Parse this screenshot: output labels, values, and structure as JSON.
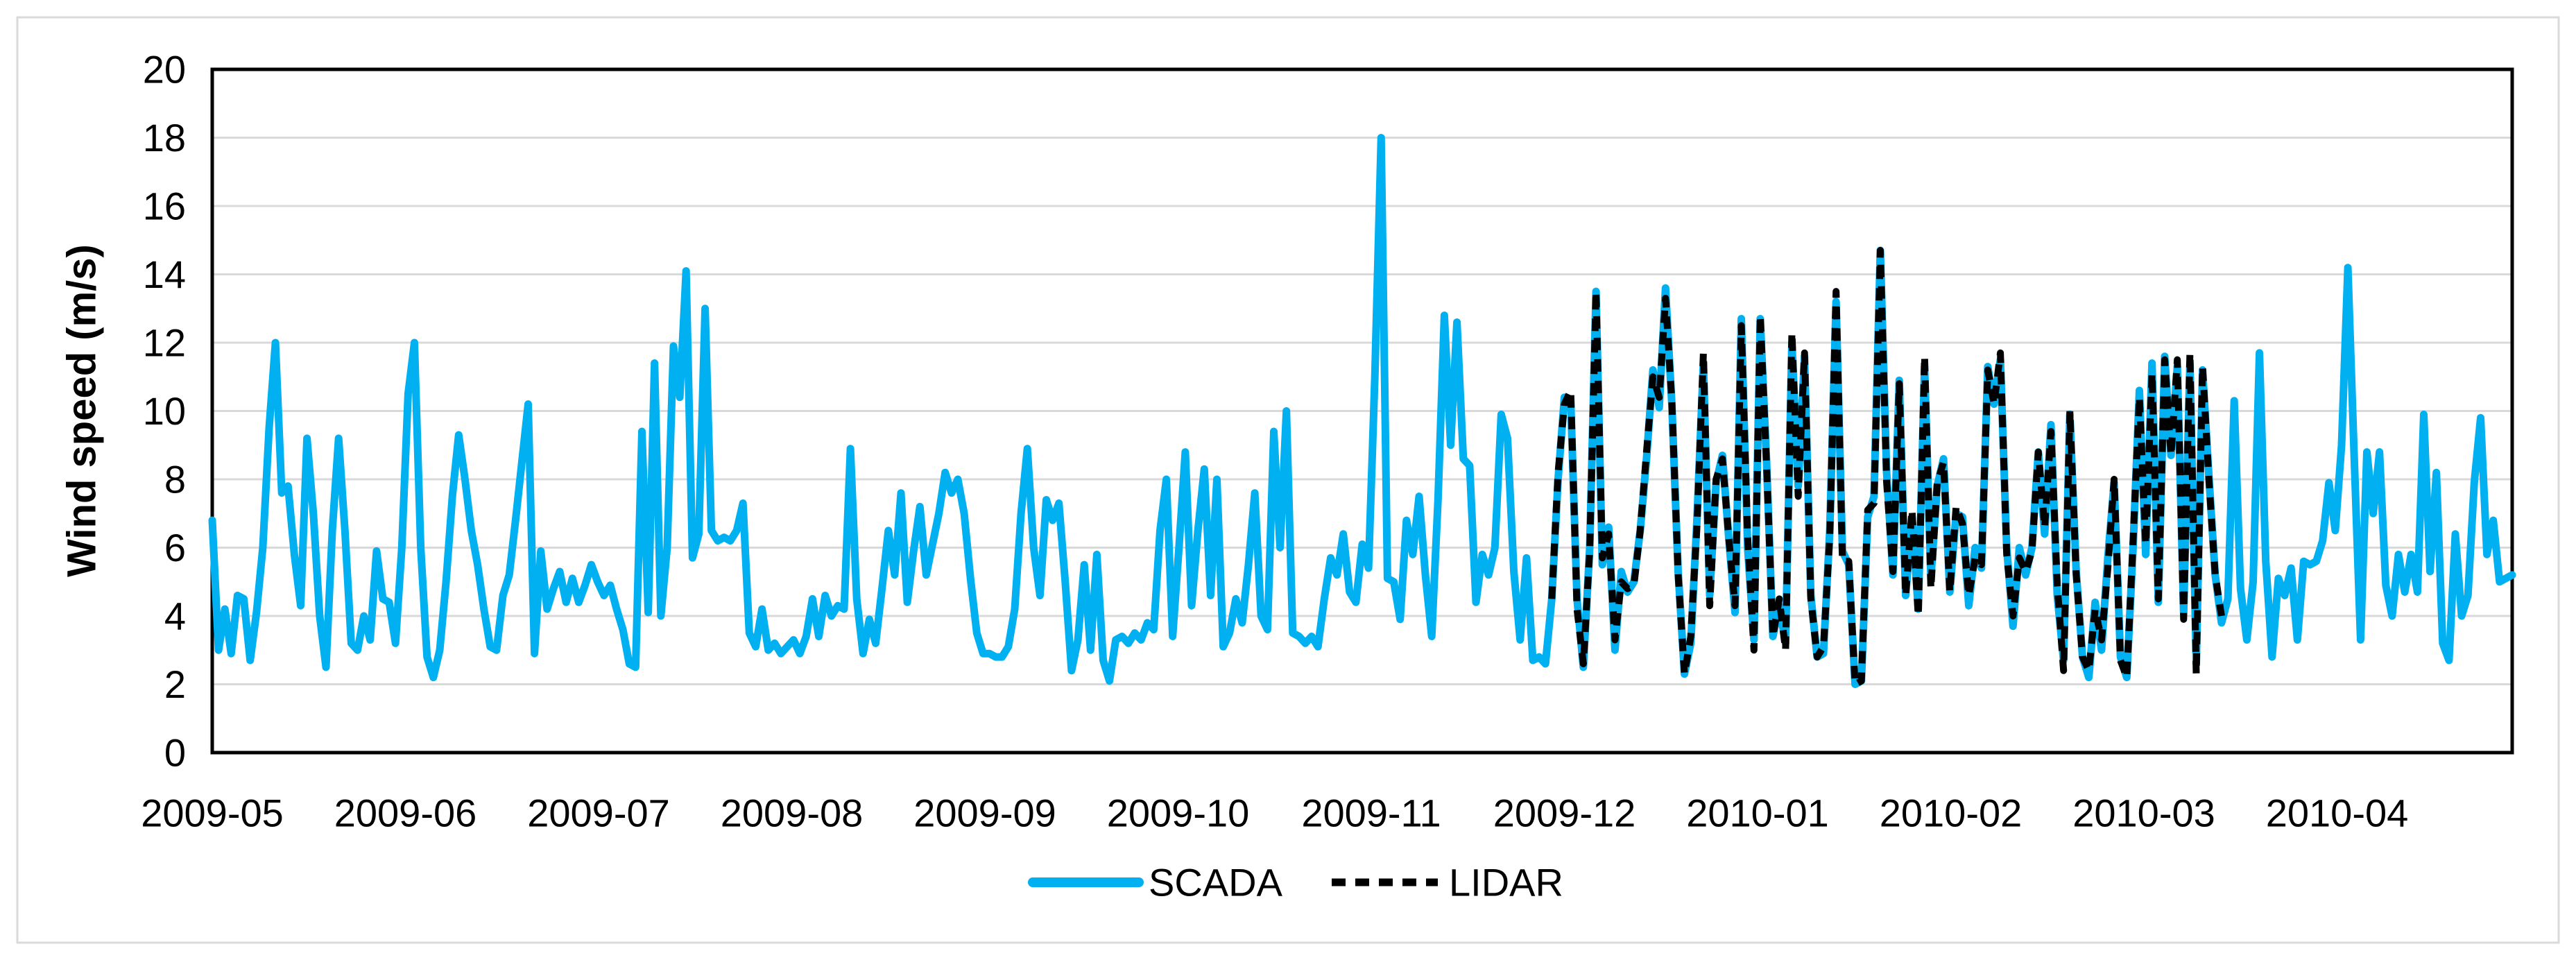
{
  "chart_data": {
    "type": "line",
    "title": "",
    "xlabel": "",
    "ylabel": "Wind speed (m/s)",
    "ylim": [
      0,
      20
    ],
    "y_tick_step": 2,
    "y_tick_labels": [
      "0",
      "2",
      "4",
      "6",
      "8",
      "10",
      "12",
      "14",
      "16",
      "18",
      "20"
    ],
    "grid": "horizontal-gridlines-on",
    "gridline_color": "#D9D9D9",
    "axis_color": "#000000",
    "outer_border_color": "#D9D9D9",
    "legend_position": "bottom-center",
    "x_unit": "day",
    "x_range_start": "2009-05-01",
    "x_range_end": "2010-04-30",
    "x_tick_labels": [
      "2009-05",
      "2009-06",
      "2009-07",
      "2009-08",
      "2009-09",
      "2009-10",
      "2009-11",
      "2009-12",
      "2010-01",
      "2010-02",
      "2010-03",
      "2010-04"
    ],
    "series": [
      {
        "name": "SCADA",
        "color": "#00B0F0",
        "style": "solid",
        "coverage": "2009-05-01 to 2010-04-30",
        "start_index": 0,
        "values": [
          6.8,
          3.0,
          4.2,
          2.9,
          4.6,
          4.5,
          2.7,
          4.1,
          6.0,
          9.5,
          12.0,
          7.6,
          7.8,
          5.8,
          4.3,
          9.2,
          7.0,
          4.0,
          2.5,
          6.5,
          9.2,
          6.5,
          3.2,
          3.0,
          4.0,
          3.3,
          5.9,
          4.5,
          4.4,
          3.2,
          6.0,
          10.5,
          12.0,
          6.0,
          2.8,
          2.2,
          3.0,
          5.0,
          7.5,
          9.3,
          8.0,
          6.5,
          5.5,
          4.2,
          3.1,
          3.0,
          4.6,
          5.2,
          6.8,
          8.5,
          10.2,
          2.9,
          5.9,
          4.2,
          4.8,
          5.3,
          4.4,
          5.1,
          4.4,
          4.9,
          5.5,
          5.0,
          4.6,
          4.9,
          4.2,
          3.6,
          2.6,
          2.5,
          9.4,
          4.1,
          11.4,
          4.0,
          6.0,
          11.9,
          10.4,
          14.1,
          5.7,
          6.4,
          13.0,
          6.5,
          6.2,
          6.3,
          6.2,
          6.5,
          7.3,
          3.5,
          3.1,
          4.2,
          3.0,
          3.2,
          2.9,
          3.1,
          3.3,
          2.9,
          3.4,
          4.5,
          3.4,
          4.6,
          4.0,
          4.3,
          4.2,
          8.9,
          4.5,
          2.9,
          3.9,
          3.2,
          4.8,
          6.5,
          5.2,
          7.6,
          4.4,
          5.9,
          7.2,
          5.2,
          6.1,
          7.0,
          8.2,
          7.6,
          8.0,
          7.0,
          5.1,
          3.5,
          2.9,
          2.9,
          2.8,
          2.8,
          3.1,
          4.2,
          7.0,
          8.9,
          6.0,
          4.6,
          7.4,
          6.8,
          7.3,
          5.0,
          2.4,
          3.3,
          5.5,
          3.0,
          5.8,
          2.7,
          2.1,
          3.3,
          3.4,
          3.2,
          3.5,
          3.3,
          3.8,
          3.6,
          6.5,
          8.0,
          3.4,
          6.0,
          8.8,
          4.3,
          6.5,
          8.3,
          4.6,
          8.0,
          3.1,
          3.5,
          4.5,
          3.8,
          5.5,
          7.6,
          4.0,
          3.6,
          9.4,
          6.0,
          10.0,
          3.5,
          3.4,
          3.2,
          3.4,
          3.1,
          4.5,
          5.7,
          5.2,
          6.4,
          4.7,
          4.4,
          6.1,
          5.4,
          11.0,
          18.0,
          5.1,
          5.0,
          3.9,
          6.8,
          5.8,
          7.5,
          5.2,
          3.4,
          7.4,
          12.8,
          9.0,
          12.6,
          8.6,
          8.4,
          4.4,
          5.8,
          5.2,
          6.0,
          9.9,
          9.2,
          5.3,
          3.3,
          5.7,
          2.7,
          2.8,
          2.6,
          4.5,
          8.0,
          10.4,
          10.3,
          4.5,
          2.5,
          6.0,
          13.5,
          5.5,
          6.6,
          3.0,
          5.3,
          4.7,
          5.0,
          6.5,
          8.6,
          11.2,
          10.1,
          13.6,
          10.2,
          5.3,
          2.3,
          3.2,
          6.9,
          11.4,
          4.6,
          7.9,
          8.7,
          6.3,
          4.1,
          12.7,
          6.0,
          3.3,
          12.7,
          8.5,
          3.4,
          4.3,
          3.2,
          12.0,
          7.8,
          11.6,
          4.6,
          2.8,
          2.9,
          6.5,
          13.2,
          5.9,
          5.5,
          2.0,
          2.1,
          6.9,
          7.5,
          14.7,
          8.2,
          5.2,
          10.9,
          4.6,
          6.9,
          4.2,
          11.3,
          5.1,
          7.8,
          8.6,
          4.7,
          7.0,
          6.9,
          4.3,
          6.0,
          5.4,
          11.3,
          10.2,
          11.5,
          6.0,
          3.7,
          6.0,
          5.2,
          6.0,
          8.8,
          6.4,
          9.6,
          4.6,
          2.7,
          9.9,
          5.3,
          2.8,
          2.2,
          4.4,
          3.0,
          5.7,
          7.9,
          2.8,
          2.2,
          6.0,
          10.6,
          5.8,
          11.4,
          4.4,
          11.6,
          8.7,
          11.3,
          4.1,
          11.4,
          2.6,
          11.2,
          8.1,
          5.2,
          3.8,
          4.5,
          10.3,
          4.8,
          3.3,
          5.0,
          11.7,
          5.6,
          2.8,
          5.1,
          4.6,
          5.4,
          3.3,
          5.6,
          5.5,
          5.6,
          6.2,
          7.9,
          6.5,
          9.0,
          14.2,
          8.6,
          3.3,
          8.8,
          7.0,
          8.8,
          4.9,
          4.0,
          5.8,
          4.7,
          5.8,
          4.7,
          9.9,
          5.3,
          8.2,
          3.2,
          2.7,
          6.4,
          4.0,
          4.6,
          7.9,
          9.8,
          5.8,
          6.8,
          5.0,
          5.1,
          5.2
        ]
      },
      {
        "name": "LIDAR",
        "color": "#000000",
        "style": "dashed",
        "coverage": "2009-11-29 to 2010-03-15",
        "start_index": 212,
        "values": [
          4.5,
          8.2,
          10.2,
          10.6,
          4.2,
          2.6,
          5.9,
          13.5,
          5.7,
          6.4,
          3.3,
          5.0,
          4.8,
          4.9,
          6.5,
          8.8,
          11.0,
          10.4,
          13.3,
          10.3,
          5.2,
          2.3,
          3.4,
          6.7,
          11.7,
          4.3,
          8.0,
          8.6,
          6.3,
          4.3,
          12.5,
          6.3,
          3.0,
          12.8,
          8.4,
          3.4,
          4.5,
          3.0,
          12.3,
          7.5,
          11.7,
          4.5,
          2.8,
          3.1,
          6.3,
          13.5,
          5.6,
          5.6,
          2.0,
          2.1,
          7.1,
          7.3,
          14.7,
          7.9,
          5.3,
          10.8,
          4.6,
          7.1,
          4.0,
          11.6,
          4.8,
          7.9,
          8.5,
          4.7,
          7.2,
          6.7,
          4.6,
          5.7,
          5.5,
          11.2,
          10.2,
          11.7,
          5.8,
          4.0,
          5.7,
          5.3,
          5.9,
          8.8,
          6.6,
          9.4,
          4.9,
          2.4,
          10.0,
          5.2,
          2.8,
          2.4,
          4.2,
          3.3,
          5.4,
          8.0,
          2.7,
          2.2,
          6.2,
          10.4,
          6.1,
          11.1,
          4.5,
          11.5,
          8.7,
          11.5,
          3.9,
          11.7,
          2.3,
          11.3,
          8.0,
          5.2,
          4.0
        ]
      }
    ]
  }
}
